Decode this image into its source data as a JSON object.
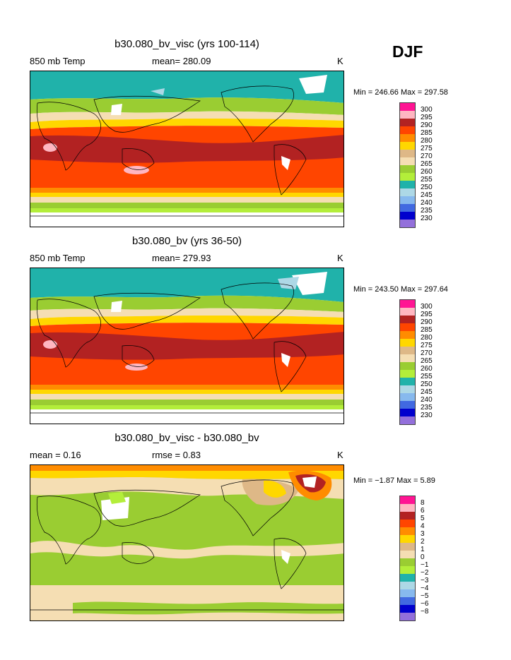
{
  "season": "DJF",
  "panels": [
    {
      "title": "b30.080_bv_visc (yrs 100-114)",
      "left": "850 mb Temp",
      "stat": "mean= 280.09",
      "units": "K",
      "minmax": "Min = 246.66 Max = 297.58"
    },
    {
      "title": "b30.080_bv (yrs 36-50)",
      "left": "850 mb Temp",
      "stat": "mean= 279.93",
      "units": "K",
      "minmax": "Min = 243.50 Max = 297.64"
    },
    {
      "title": "b30.080_bv_visc - b30.080_bv",
      "left": "mean =    0.16",
      "stat": "rmse =    0.83",
      "units": "K",
      "minmax": "Min =   −1.87 Max =    5.89"
    }
  ],
  "colorbars": {
    "absolute": {
      "labels": [
        "300",
        "295",
        "290",
        "285",
        "280",
        "275",
        "270",
        "265",
        "260",
        "255",
        "250",
        "245",
        "240",
        "235",
        "230"
      ],
      "colors": [
        "#ff1493",
        "#ffb6c1",
        "#b22222",
        "#ff4500",
        "#ff8c00",
        "#ffd700",
        "#deb887",
        "#f5deb3",
        "#9acd32",
        "#b3ee3a",
        "#20b2aa",
        "#add8e6",
        "#87b9ee",
        "#4169e1",
        "#0000cd",
        "#9370db"
      ]
    },
    "difference": {
      "labels": [
        "8",
        "6",
        "5",
        "4",
        "3",
        "2",
        "1",
        "0",
        "−1",
        "−2",
        "−3",
        "−4",
        "−5",
        "−6",
        "−8"
      ],
      "colors": [
        "#ff1493",
        "#ffb6c1",
        "#b22222",
        "#ff4500",
        "#ff8c00",
        "#ffd700",
        "#deb887",
        "#f5deb3",
        "#9acd32",
        "#b3ee3a",
        "#20b2aa",
        "#add8e6",
        "#87b9ee",
        "#4169e1",
        "#0000cd",
        "#9370db"
      ]
    }
  }
}
